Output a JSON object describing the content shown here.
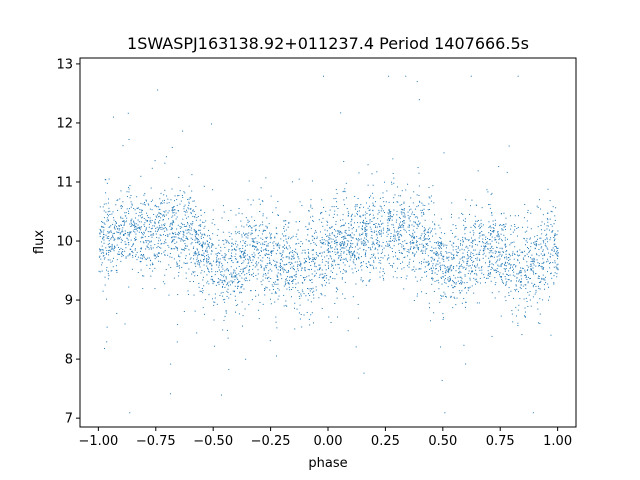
{
  "chart_data": {
    "type": "scatter",
    "title": "1SWASPJ163138.92+011237.4 Period 1407666.5s",
    "xlabel": "phase",
    "ylabel": "flux",
    "xlim": [
      -1.08,
      1.08
    ],
    "ylim": [
      6.85,
      13.1
    ],
    "x_ticks": [
      -1.0,
      -0.75,
      -0.5,
      -0.25,
      0.0,
      0.25,
      0.5,
      0.75,
      1.0
    ],
    "x_tick_labels": [
      "−1.00",
      "−0.75",
      "−0.50",
      "−0.25",
      "0.00",
      "0.25",
      "0.50",
      "0.75",
      "1.00"
    ],
    "y_ticks": [
      7,
      8,
      9,
      10,
      11,
      12,
      13
    ],
    "y_tick_labels": [
      "7",
      "8",
      "9",
      "10",
      "11",
      "12",
      "13"
    ],
    "grid": false,
    "legend": "none",
    "marker_color": "#1f77b4",
    "phase_range": [
      -1.0,
      1.0
    ],
    "baseline_flux": 9.95,
    "typical_scatter": 0.45,
    "flux_extent": [
      7.1,
      12.8
    ],
    "profile": {
      "x": [
        -1.0,
        -0.9,
        -0.8,
        -0.7,
        -0.6,
        -0.5,
        -0.45,
        -0.4,
        -0.3,
        -0.2,
        -0.1,
        0.0,
        0.1,
        0.2,
        0.3,
        0.4,
        0.5,
        0.55,
        0.6,
        0.7,
        0.8,
        0.9,
        1.0
      ],
      "y": [
        10.0,
        10.1,
        10.2,
        10.2,
        10.1,
        9.6,
        9.5,
        9.7,
        9.9,
        9.6,
        9.6,
        9.9,
        10.0,
        10.1,
        10.2,
        10.1,
        9.6,
        9.5,
        9.7,
        9.9,
        9.6,
        9.6,
        9.9
      ]
    }
  }
}
